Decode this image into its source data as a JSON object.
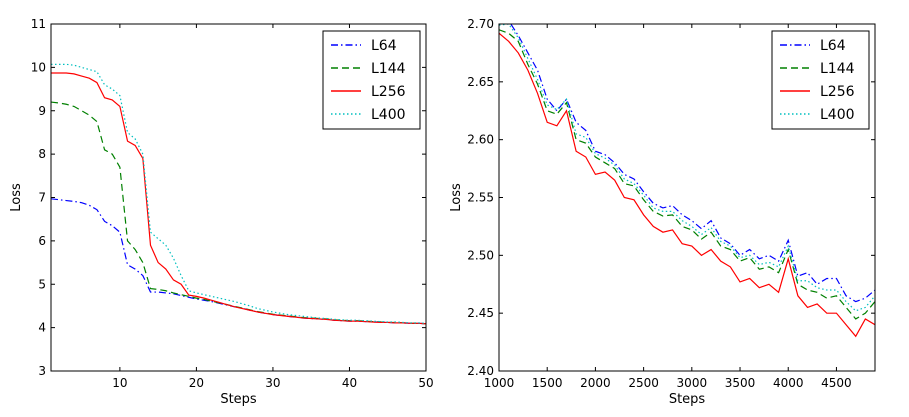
{
  "chart_data": [
    {
      "type": "line",
      "xlabel": "Steps",
      "ylabel": "Loss",
      "xlim": [
        1,
        50
      ],
      "ylim": [
        3,
        11
      ],
      "xticks": [
        "10",
        "20",
        "30",
        "40",
        "50"
      ],
      "yticks": [
        "3",
        "4",
        "5",
        "6",
        "7",
        "8",
        "9",
        "10",
        "11"
      ],
      "legend_position": "top-right",
      "grid": false,
      "x": [
        1,
        2,
        3,
        4,
        5,
        6,
        7,
        8,
        9,
        10,
        11,
        12,
        13,
        14,
        15,
        16,
        17,
        18,
        19,
        20,
        21,
        22,
        23,
        24,
        25,
        26,
        27,
        28,
        29,
        30,
        31,
        32,
        33,
        34,
        35,
        36,
        37,
        38,
        39,
        40,
        41,
        42,
        43,
        44,
        45,
        46,
        47,
        48,
        49,
        50
      ],
      "series": [
        {
          "name": "L64",
          "color": "#0000ff",
          "dash": "dashdot",
          "values": [
            6.97,
            6.95,
            6.93,
            6.91,
            6.88,
            6.82,
            6.72,
            6.45,
            6.35,
            6.2,
            5.45,
            5.35,
            5.2,
            4.82,
            4.82,
            4.8,
            4.78,
            4.74,
            4.7,
            4.66,
            4.63,
            4.6,
            4.56,
            4.52,
            4.48,
            4.45,
            4.4,
            4.36,
            4.33,
            4.3,
            4.28,
            4.26,
            4.24,
            4.22,
            4.21,
            4.2,
            4.19,
            4.17,
            4.16,
            4.15,
            4.15,
            4.14,
            4.13,
            4.13,
            4.12,
            4.11,
            4.11,
            4.1,
            4.1,
            4.09
          ]
        },
        {
          "name": "L144",
          "color": "#008000",
          "dash": "dashed",
          "values": [
            9.2,
            9.18,
            9.15,
            9.1,
            9.0,
            8.9,
            8.75,
            8.1,
            8.0,
            7.7,
            6.0,
            5.8,
            5.5,
            4.9,
            4.88,
            4.85,
            4.8,
            4.76,
            4.72,
            4.68,
            4.65,
            4.61,
            4.57,
            4.53,
            4.49,
            4.45,
            4.41,
            4.37,
            4.34,
            4.31,
            4.29,
            4.27,
            4.25,
            4.23,
            4.22,
            4.21,
            4.2,
            4.18,
            4.17,
            4.16,
            4.16,
            4.15,
            4.14,
            4.13,
            4.12,
            4.12,
            4.11,
            4.1,
            4.1,
            4.09
          ]
        },
        {
          "name": "L256",
          "color": "#ff0000",
          "dash": "solid",
          "values": [
            9.87,
            9.87,
            9.87,
            9.85,
            9.8,
            9.75,
            9.65,
            9.3,
            9.25,
            9.1,
            8.3,
            8.2,
            7.9,
            5.9,
            5.5,
            5.35,
            5.1,
            5.0,
            4.75,
            4.72,
            4.68,
            4.63,
            4.58,
            4.53,
            4.48,
            4.44,
            4.4,
            4.36,
            4.33,
            4.3,
            4.28,
            4.26,
            4.24,
            4.22,
            4.21,
            4.2,
            4.19,
            4.17,
            4.16,
            4.15,
            4.15,
            4.14,
            4.13,
            4.12,
            4.12,
            4.11,
            4.11,
            4.1,
            4.1,
            4.09
          ]
        },
        {
          "name": "L400",
          "color": "#00bfbf",
          "dash": "dotted",
          "values": [
            10.07,
            10.07,
            10.07,
            10.05,
            10.0,
            9.95,
            9.9,
            9.6,
            9.5,
            9.35,
            8.5,
            8.35,
            8.0,
            6.2,
            6.05,
            5.9,
            5.6,
            5.2,
            4.85,
            4.8,
            4.76,
            4.72,
            4.68,
            4.64,
            4.6,
            4.55,
            4.5,
            4.44,
            4.4,
            4.36,
            4.33,
            4.3,
            4.28,
            4.26,
            4.24,
            4.22,
            4.21,
            4.19,
            4.18,
            4.17,
            4.17,
            4.16,
            4.15,
            4.14,
            4.13,
            4.13,
            4.12,
            4.11,
            4.11,
            4.1
          ]
        }
      ]
    },
    {
      "type": "line",
      "xlabel": "Steps",
      "ylabel": "Loss",
      "xlim": [
        1000,
        4900
      ],
      "ylim": [
        2.4,
        2.7
      ],
      "xticks": [
        "1000",
        "1500",
        "2000",
        "2500",
        "3000",
        "3500",
        "4000",
        "4500"
      ],
      "yticks": [
        "2.40",
        "2.45",
        "2.50",
        "2.55",
        "2.60",
        "2.65",
        "2.70"
      ],
      "legend_position": "top-right",
      "grid": false,
      "x": [
        1000,
        1100,
        1200,
        1300,
        1400,
        1500,
        1600,
        1700,
        1800,
        1900,
        2000,
        2100,
        2200,
        2300,
        2400,
        2500,
        2600,
        2700,
        2800,
        2900,
        3000,
        3100,
        3200,
        3300,
        3400,
        3500,
        3600,
        3700,
        3800,
        3900,
        4000,
        4100,
        4200,
        4300,
        4400,
        4500,
        4600,
        4700,
        4800,
        4900
      ],
      "series": [
        {
          "name": "L64",
          "color": "#0000ff",
          "dash": "dashdot",
          "values": [
            2.701,
            2.703,
            2.69,
            2.675,
            2.66,
            2.635,
            2.625,
            2.635,
            2.615,
            2.608,
            2.59,
            2.587,
            2.58,
            2.57,
            2.566,
            2.555,
            2.545,
            2.541,
            2.543,
            2.535,
            2.53,
            2.523,
            2.53,
            2.515,
            2.51,
            2.5,
            2.505,
            2.497,
            2.5,
            2.495,
            2.513,
            2.482,
            2.485,
            2.475,
            2.48,
            2.48,
            2.465,
            2.46,
            2.463,
            2.47
          ]
        },
        {
          "name": "L144",
          "color": "#008000",
          "dash": "dashed",
          "values": [
            2.695,
            2.692,
            2.685,
            2.665,
            2.648,
            2.625,
            2.622,
            2.632,
            2.6,
            2.597,
            2.585,
            2.58,
            2.575,
            2.562,
            2.56,
            2.548,
            2.538,
            2.534,
            2.535,
            2.525,
            2.522,
            2.514,
            2.52,
            2.508,
            2.505,
            2.495,
            2.498,
            2.488,
            2.49,
            2.485,
            2.505,
            2.475,
            2.47,
            2.468,
            2.463,
            2.465,
            2.455,
            2.445,
            2.45,
            2.46
          ]
        },
        {
          "name": "L256",
          "color": "#ff0000",
          "dash": "solid",
          "values": [
            2.692,
            2.685,
            2.675,
            2.66,
            2.64,
            2.615,
            2.612,
            2.625,
            2.59,
            2.585,
            2.57,
            2.572,
            2.565,
            2.55,
            2.548,
            2.535,
            2.525,
            2.52,
            2.522,
            2.51,
            2.508,
            2.5,
            2.505,
            2.495,
            2.49,
            2.477,
            2.48,
            2.472,
            2.475,
            2.468,
            2.497,
            2.465,
            2.455,
            2.458,
            2.45,
            2.45,
            2.44,
            2.43,
            2.445,
            2.44
          ]
        },
        {
          "name": "L400",
          "color": "#00bfbf",
          "dash": "dotted",
          "values": [
            2.699,
            2.7,
            2.688,
            2.67,
            2.652,
            2.63,
            2.626,
            2.635,
            2.605,
            2.602,
            2.588,
            2.584,
            2.578,
            2.566,
            2.562,
            2.552,
            2.541,
            2.538,
            2.538,
            2.53,
            2.525,
            2.518,
            2.524,
            2.512,
            2.508,
            2.498,
            2.5,
            2.492,
            2.494,
            2.49,
            2.508,
            2.478,
            2.478,
            2.472,
            2.47,
            2.47,
            2.46,
            2.452,
            2.455,
            2.465
          ]
        }
      ]
    }
  ]
}
